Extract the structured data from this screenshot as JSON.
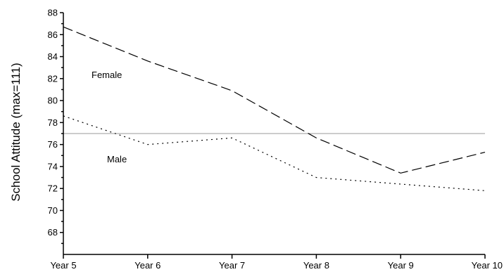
{
  "chart_data": {
    "type": "line",
    "title": "",
    "xlabel": "",
    "ylabel": "School Attitude (max=111)",
    "categories": [
      "Year 5",
      "Year 6",
      "Year 7",
      "Year 8",
      "Year 9",
      "Year 10"
    ],
    "ylim": [
      66,
      88
    ],
    "yticks": [
      68,
      70,
      72,
      74,
      76,
      78,
      80,
      82,
      84,
      86,
      88
    ],
    "reference_line": 77,
    "grid": false,
    "series": [
      {
        "name": "Female",
        "values": [
          86.7,
          83.6,
          80.9,
          76.6,
          73.4,
          75.3
        ],
        "dash": "dashed"
      },
      {
        "name": "Male",
        "values": [
          78.6,
          76.0,
          76.6,
          73.0,
          72.4,
          71.8
        ],
        "dash": "dotted"
      }
    ],
    "colors": {
      "line": "#000000",
      "reference": "#9a9a9a"
    }
  }
}
